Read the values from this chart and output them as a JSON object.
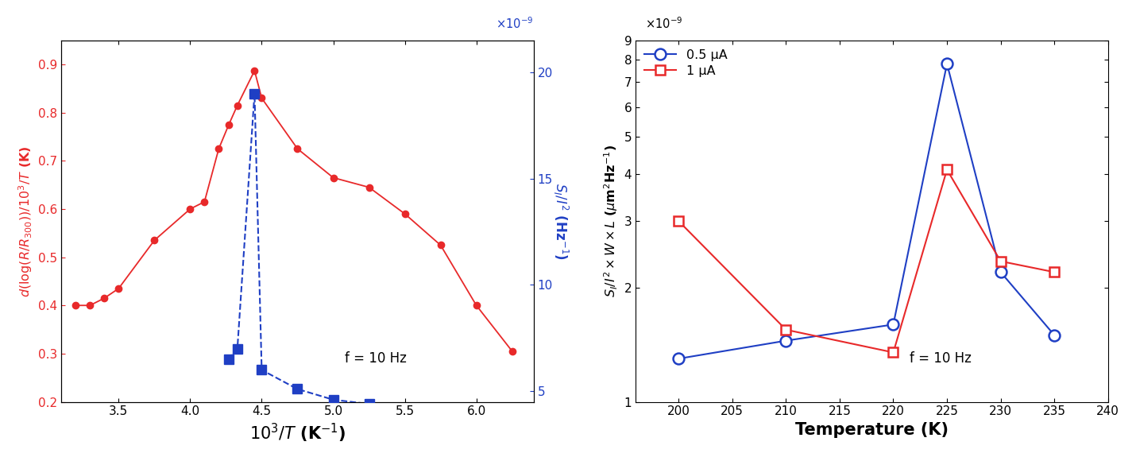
{
  "left": {
    "red_x": [
      3.2,
      3.3,
      3.4,
      3.5,
      3.75,
      4.0,
      4.1,
      4.2,
      4.27,
      4.33,
      4.45,
      4.5,
      4.75,
      5.0,
      5.25,
      5.5,
      5.75,
      6.0,
      6.25
    ],
    "red_y": [
      0.4,
      0.4,
      0.415,
      0.435,
      0.535,
      0.6,
      0.615,
      0.725,
      0.775,
      0.815,
      0.887,
      0.83,
      0.725,
      0.665,
      0.645,
      0.59,
      0.525,
      0.4,
      0.305
    ],
    "blue_x": [
      4.27,
      4.33,
      4.45,
      4.5,
      4.75,
      5.0,
      5.25
    ],
    "blue_y": [
      6.5,
      7.0,
      19.0,
      6.0,
      5.1,
      4.6,
      4.4
    ],
    "ylim_left": [
      0.2,
      0.95
    ],
    "ylim_right": [
      4.5,
      21.5
    ],
    "xlim": [
      3.1,
      6.4
    ],
    "yticks_left": [
      0.2,
      0.3,
      0.4,
      0.5,
      0.6,
      0.7,
      0.8,
      0.9
    ],
    "yticks_right": [
      5,
      10,
      15,
      20
    ],
    "xticks": [
      3.5,
      4.0,
      4.5,
      5.0,
      5.5,
      6.0
    ]
  },
  "right": {
    "blue_x": [
      200,
      210,
      220,
      225,
      230,
      235
    ],
    "blue_y": [
      1.3e-09,
      1.45e-09,
      1.6e-09,
      7.8e-09,
      2.2e-09,
      1.5e-09
    ],
    "red_x": [
      200,
      210,
      220,
      225,
      230,
      235
    ],
    "red_y": [
      3e-09,
      1.55e-09,
      1.35e-09,
      4.1e-09,
      2.35e-09,
      2.2e-09
    ],
    "xlim": [
      196,
      240
    ],
    "ylim": [
      1e-09,
      9e-09
    ],
    "xticks": [
      200,
      205,
      210,
      215,
      220,
      225,
      230,
      235,
      240
    ],
    "legend_blue": "0.5 μA",
    "legend_red": "1 μA"
  },
  "red_color": "#e8292a",
  "blue_color": "#1f3fc4"
}
